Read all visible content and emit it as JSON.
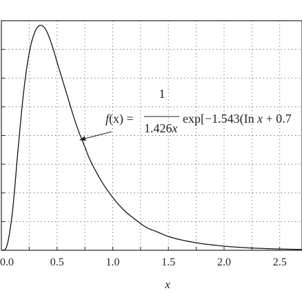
{
  "chart_data": {
    "type": "line",
    "xlabel": "x",
    "ylabel": "",
    "title": "",
    "xlim": [
      0.0,
      2.7
    ],
    "ylim": [
      0.0,
      1.0
    ],
    "xticks": [
      "0.0",
      "0.5",
      "1.0",
      "1.5",
      "2.0",
      "2.5"
    ],
    "grid": true,
    "series": [
      {
        "x": [
          0.0,
          0.05,
          0.1,
          0.15,
          0.2,
          0.25,
          0.3,
          0.35,
          0.4,
          0.45,
          0.5,
          0.55,
          0.6,
          0.65,
          0.7,
          0.75,
          0.8,
          0.9,
          1.0,
          1.1,
          1.2,
          1.3,
          1.4,
          1.5,
          1.6,
          1.7,
          1.8,
          2.0,
          2.2,
          2.4,
          2.6,
          2.7
        ],
        "y": [
          0.0,
          0.02,
          0.17,
          0.44,
          0.69,
          0.86,
          0.95,
          0.98,
          0.96,
          0.9,
          0.82,
          0.74,
          0.66,
          0.58,
          0.51,
          0.45,
          0.39,
          0.3,
          0.23,
          0.175,
          0.135,
          0.1,
          0.08,
          0.06,
          0.047,
          0.037,
          0.029,
          0.018,
          0.011,
          0.007,
          0.0045,
          0.0035
        ]
      }
    ],
    "annotation": {
      "lhs_f": "f",
      "lhs_arg": "(x) =",
      "numerator": "1",
      "denominator_num": "1.426",
      "denominator_var": "x",
      "exp_text": "exp[−1.543(In",
      "exp_var": "x",
      "exp_tail": "+ 0.7",
      "arrow_target": [
        0.7,
        0.48
      ]
    }
  }
}
